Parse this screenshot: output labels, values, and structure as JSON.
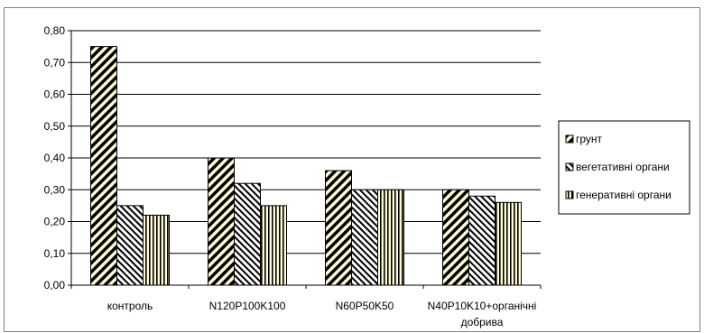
{
  "chart_data": {
    "type": "bar",
    "categories": [
      [
        "контроль"
      ],
      [
        "N120P100K100"
      ],
      [
        "N60P50K50"
      ],
      [
        "N40P10K10+органічні",
        "добрива"
      ]
    ],
    "series": [
      {
        "name": "грунт",
        "values": [
          0.75,
          0.4,
          0.36,
          0.3
        ],
        "pattern": "diag-wide"
      },
      {
        "name": "вегетативні органи",
        "values": [
          0.25,
          0.32,
          0.3,
          0.28
        ],
        "pattern": "diag-narrow"
      },
      {
        "name": "генеративні органи",
        "values": [
          0.22,
          0.25,
          0.3,
          0.26
        ],
        "pattern": "vertical"
      }
    ],
    "yticks": [
      "0,00",
      "0,10",
      "0,20",
      "0,30",
      "0,40",
      "0,50",
      "0,60",
      "0,70",
      "0,80"
    ],
    "ylim": [
      0,
      0.8
    ],
    "grid": true,
    "legend_position": "right",
    "colors": {
      "bar_fill": "#fffbd6",
      "ink": "#000000",
      "grid": "#000000",
      "frame": "#808080"
    }
  }
}
